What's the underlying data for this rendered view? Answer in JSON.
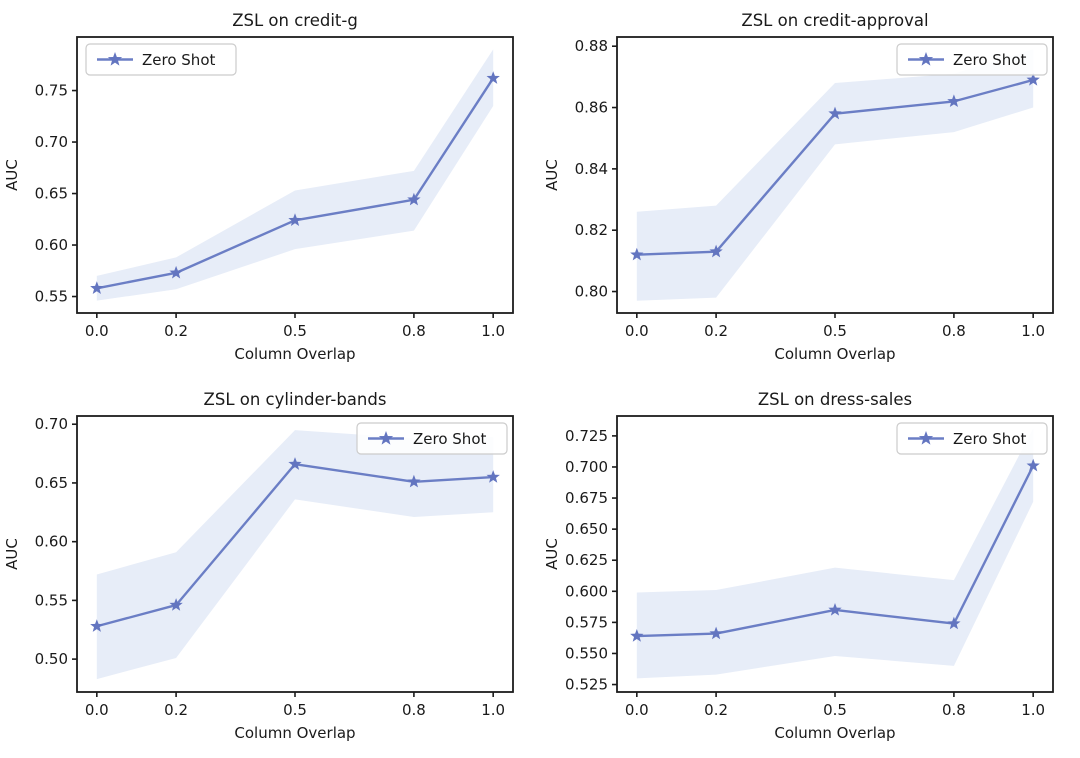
{
  "figure": {
    "background": "#ffffff",
    "line_color": "#6b7ec5",
    "marker_color": "#6375c0",
    "band_color": "#e7edf8",
    "text_color": "#1a1a1a",
    "spine_color": "#1c1c1c",
    "legend_border_color": "#cccccc",
    "legend_label": "Zero Shot",
    "marker_shape": "star"
  },
  "chart_data": [
    {
      "type": "line",
      "title": "ZSL on credit-g",
      "xlabel": "Column Overlap",
      "ylabel": "AUC",
      "x": [
        0.0,
        0.2,
        0.5,
        0.8,
        1.0
      ],
      "xlim": [
        -0.05,
        1.05
      ],
      "ylim": [
        0.534,
        0.802
      ],
      "xticks": [
        0.0,
        0.2,
        0.5,
        0.8,
        1.0
      ],
      "xtick_labels": [
        "0.0",
        "0.2",
        "0.5",
        "0.8",
        "1.0"
      ],
      "yticks": [
        0.55,
        0.6,
        0.65,
        0.7,
        0.75
      ],
      "ytick_labels": [
        "0.55",
        "0.60",
        "0.65",
        "0.70",
        "0.75"
      ],
      "grid": false,
      "legend": {
        "label": "Zero Shot",
        "position": "upper-left"
      },
      "series": [
        {
          "name": "Zero Shot",
          "values": [
            0.558,
            0.573,
            0.624,
            0.644,
            0.762
          ],
          "band_lower": [
            0.546,
            0.557,
            0.596,
            0.614,
            0.735
          ],
          "band_upper": [
            0.57,
            0.588,
            0.653,
            0.672,
            0.79
          ]
        }
      ]
    },
    {
      "type": "line",
      "title": "ZSL on credit-approval",
      "xlabel": "Column Overlap",
      "ylabel": "AUC",
      "x": [
        0.0,
        0.2,
        0.5,
        0.8,
        1.0
      ],
      "xlim": [
        -0.05,
        1.05
      ],
      "ylim": [
        0.793,
        0.883
      ],
      "xticks": [
        0.0,
        0.2,
        0.5,
        0.8,
        1.0
      ],
      "xtick_labels": [
        "0.0",
        "0.2",
        "0.5",
        "0.8",
        "1.0"
      ],
      "yticks": [
        0.8,
        0.82,
        0.84,
        0.86,
        0.88
      ],
      "ytick_labels": [
        "0.80",
        "0.82",
        "0.84",
        "0.86",
        "0.88"
      ],
      "grid": false,
      "legend": {
        "label": "Zero Shot",
        "position": "upper-right"
      },
      "series": [
        {
          "name": "Zero Shot",
          "values": [
            0.812,
            0.813,
            0.858,
            0.862,
            0.869
          ],
          "band_lower": [
            0.797,
            0.798,
            0.848,
            0.852,
            0.86
          ],
          "band_upper": [
            0.826,
            0.828,
            0.868,
            0.871,
            0.879
          ]
        }
      ]
    },
    {
      "type": "line",
      "title": "ZSL on cylinder-bands",
      "xlabel": "Column Overlap",
      "ylabel": "AUC",
      "x": [
        0.0,
        0.2,
        0.5,
        0.8,
        1.0
      ],
      "xlim": [
        -0.05,
        1.05
      ],
      "ylim": [
        0.472,
        0.707
      ],
      "xticks": [
        0.0,
        0.2,
        0.5,
        0.8,
        1.0
      ],
      "xtick_labels": [
        "0.0",
        "0.2",
        "0.5",
        "0.8",
        "1.0"
      ],
      "yticks": [
        0.5,
        0.55,
        0.6,
        0.65,
        0.7
      ],
      "ytick_labels": [
        "0.50",
        "0.55",
        "0.60",
        "0.65",
        "0.70"
      ],
      "grid": false,
      "legend": {
        "label": "Zero Shot",
        "position": "upper-right"
      },
      "series": [
        {
          "name": "Zero Shot",
          "values": [
            0.528,
            0.546,
            0.666,
            0.651,
            0.655
          ],
          "band_lower": [
            0.483,
            0.501,
            0.636,
            0.621,
            0.625
          ],
          "band_upper": [
            0.572,
            0.591,
            0.695,
            0.688,
            0.689
          ]
        }
      ]
    },
    {
      "type": "line",
      "title": "ZSL on dress-sales",
      "xlabel": "Column Overlap",
      "ylabel": "AUC",
      "x": [
        0.0,
        0.2,
        0.5,
        0.8,
        1.0
      ],
      "xlim": [
        -0.05,
        1.05
      ],
      "ylim": [
        0.519,
        0.741
      ],
      "xticks": [
        0.0,
        0.2,
        0.5,
        0.8,
        1.0
      ],
      "xtick_labels": [
        "0.0",
        "0.2",
        "0.5",
        "0.8",
        "1.0"
      ],
      "yticks": [
        0.525,
        0.55,
        0.575,
        0.6,
        0.625,
        0.65,
        0.675,
        0.7,
        0.725
      ],
      "ytick_labels": [
        "0.525",
        "0.550",
        "0.575",
        "0.600",
        "0.625",
        "0.650",
        "0.675",
        "0.700",
        "0.725"
      ],
      "grid": false,
      "legend": {
        "label": "Zero Shot",
        "position": "upper-right"
      },
      "series": [
        {
          "name": "Zero Shot",
          "values": [
            0.564,
            0.566,
            0.585,
            0.574,
            0.701
          ],
          "band_lower": [
            0.53,
            0.533,
            0.548,
            0.54,
            0.672
          ],
          "band_upper": [
            0.599,
            0.601,
            0.619,
            0.609,
            0.731
          ]
        }
      ]
    }
  ]
}
